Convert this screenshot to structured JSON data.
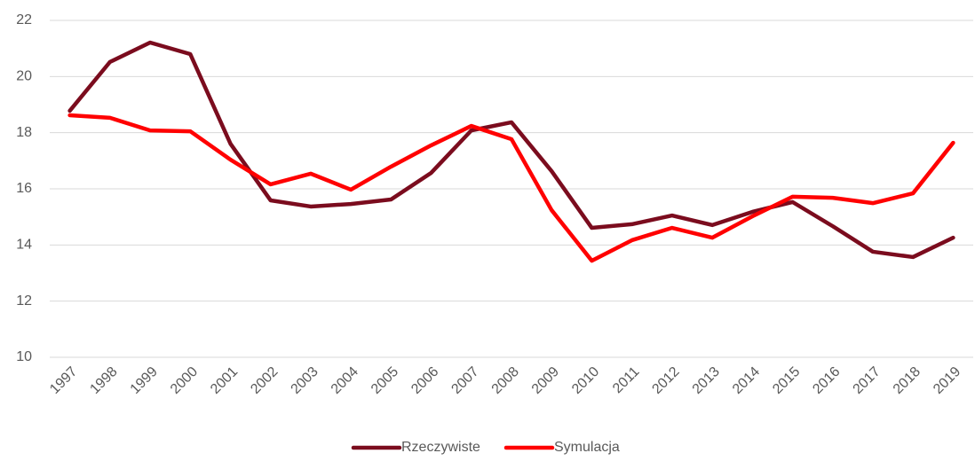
{
  "chart_data": {
    "type": "line",
    "categories": [
      "1997",
      "1998",
      "1999",
      "2000",
      "2001",
      "2002",
      "2003",
      "2004",
      "2005",
      "2006",
      "2007",
      "2008",
      "2009",
      "2010",
      "2011",
      "2012",
      "2013",
      "2014",
      "2015",
      "2016",
      "2017",
      "2018",
      "2019"
    ],
    "series": [
      {
        "name": "Rzeczywiste",
        "color": "#7b0c1e",
        "values": [
          18.78,
          20.52,
          21.21,
          20.8,
          17.61,
          15.59,
          15.37,
          15.46,
          15.62,
          16.57,
          18.08,
          18.37,
          16.63,
          14.61,
          14.74,
          15.05,
          14.71,
          15.18,
          15.53,
          14.67,
          13.76,
          13.57,
          14.26
        ]
      },
      {
        "name": "Symulacja",
        "color": "#ff0000",
        "values": [
          18.62,
          18.53,
          18.08,
          18.05,
          17.04,
          16.16,
          16.54,
          15.97,
          16.79,
          17.55,
          18.24,
          17.77,
          15.24,
          13.44,
          14.17,
          14.61,
          14.26,
          15.02,
          15.72,
          15.68,
          15.49,
          15.84,
          17.64
        ]
      }
    ],
    "ylim": [
      10,
      22
    ],
    "yticks": [
      10,
      12,
      14,
      16,
      18,
      20,
      22
    ],
    "grid": true,
    "legend": "bottom"
  }
}
